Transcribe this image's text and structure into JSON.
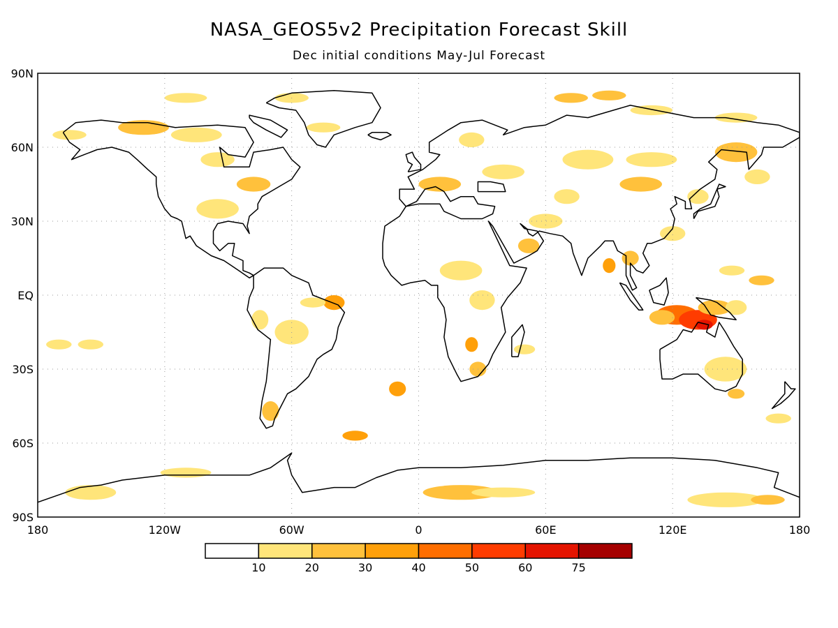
{
  "title": "NASA_GEOS5v2 Precipitation Forecast Skill",
  "subtitle": "Dec initial conditions   May-Jul Forecast",
  "map": {
    "lon_range": [
      -180,
      180
    ],
    "lat_range": [
      -90,
      90
    ],
    "grid": true,
    "lat_ticks": [
      {
        "value": 90,
        "label": "90N"
      },
      {
        "value": 60,
        "label": "60N"
      },
      {
        "value": 30,
        "label": "30N"
      },
      {
        "value": 0,
        "label": "EQ"
      },
      {
        "value": -30,
        "label": "30S"
      },
      {
        "value": -60,
        "label": "60S"
      },
      {
        "value": -90,
        "label": "90S"
      }
    ],
    "lon_ticks": [
      {
        "value": -180,
        "label": "180"
      },
      {
        "value": -120,
        "label": "120W"
      },
      {
        "value": -60,
        "label": "60W"
      },
      {
        "value": 0,
        "label": "0"
      },
      {
        "value": 60,
        "label": "60E"
      },
      {
        "value": 120,
        "label": "120E"
      },
      {
        "value": 180,
        "label": "180"
      }
    ]
  },
  "colorbar": {
    "colors": [
      "#ffffff",
      "#ffe57a",
      "#ffc13c",
      "#ffa00a",
      "#ff6e00",
      "#ff3c00",
      "#e41400",
      "#a50000"
    ],
    "labels": [
      "10",
      "20",
      "30",
      "40",
      "50",
      "60",
      "75"
    ]
  },
  "skill_regions": [
    {
      "lon": 122,
      "lat": -8,
      "rx": 10,
      "ry": 4,
      "level": 4
    },
    {
      "lon": 132,
      "lat": -10,
      "rx": 9,
      "ry": 4,
      "level": 5
    },
    {
      "lon": 135,
      "lat": -12,
      "rx": 4,
      "ry": 2,
      "level": 6
    },
    {
      "lon": 115,
      "lat": -9,
      "rx": 6,
      "ry": 3,
      "level": 2
    },
    {
      "lon": 140,
      "lat": -5,
      "rx": 8,
      "ry": 3,
      "level": 2
    },
    {
      "lon": 150,
      "lat": -5,
      "rx": 5,
      "ry": 3,
      "level": 1
    },
    {
      "lon": 148,
      "lat": 10,
      "rx": 6,
      "ry": 2,
      "level": 1
    },
    {
      "lon": 162,
      "lat": 6,
      "rx": 6,
      "ry": 2,
      "level": 2
    },
    {
      "lon": 90,
      "lat": 12,
      "rx": 3,
      "ry": 3,
      "level": 3
    },
    {
      "lon": 100,
      "lat": 15,
      "rx": 4,
      "ry": 3,
      "level": 2
    },
    {
      "lon": 105,
      "lat": 45,
      "rx": 10,
      "ry": 3,
      "level": 2
    },
    {
      "lon": 80,
      "lat": 55,
      "rx": 12,
      "ry": 4,
      "level": 1
    },
    {
      "lon": 110,
      "lat": 55,
      "rx": 12,
      "ry": 3,
      "level": 1
    },
    {
      "lon": 150,
      "lat": 58,
      "rx": 10,
      "ry": 4,
      "level": 2
    },
    {
      "lon": 160,
      "lat": 48,
      "rx": 6,
      "ry": 3,
      "level": 1
    },
    {
      "lon": 72,
      "lat": 80,
      "rx": 8,
      "ry": 2,
      "level": 2
    },
    {
      "lon": 90,
      "lat": 81,
      "rx": 8,
      "ry": 2,
      "level": 2
    },
    {
      "lon": 110,
      "lat": 75,
      "rx": 10,
      "ry": 2,
      "level": 1
    },
    {
      "lon": 150,
      "lat": 72,
      "rx": 10,
      "ry": 2,
      "level": 1
    },
    {
      "lon": 10,
      "lat": 45,
      "rx": 10,
      "ry": 3,
      "level": 2
    },
    {
      "lon": 40,
      "lat": 50,
      "rx": 10,
      "ry": 3,
      "level": 1
    },
    {
      "lon": 25,
      "lat": 63,
      "rx": 6,
      "ry": 3,
      "level": 1
    },
    {
      "lon": 60,
      "lat": 30,
      "rx": 8,
      "ry": 3,
      "level": 1
    },
    {
      "lon": 52,
      "lat": 20,
      "rx": 5,
      "ry": 3,
      "level": 2
    },
    {
      "lon": 20,
      "lat": 10,
      "rx": 10,
      "ry": 4,
      "level": 1
    },
    {
      "lon": 30,
      "lat": -2,
      "rx": 6,
      "ry": 4,
      "level": 1
    },
    {
      "lon": 25,
      "lat": -20,
      "rx": 3,
      "ry": 3,
      "level": 3
    },
    {
      "lon": 28,
      "lat": -30,
      "rx": 4,
      "ry": 3,
      "level": 2
    },
    {
      "lon": 50,
      "lat": -22,
      "rx": 5,
      "ry": 2,
      "level": 1
    },
    {
      "lon": -130,
      "lat": 68,
      "rx": 12,
      "ry": 3,
      "level": 2
    },
    {
      "lon": -105,
      "lat": 65,
      "rx": 12,
      "ry": 3,
      "level": 1
    },
    {
      "lon": -95,
      "lat": 55,
      "rx": 8,
      "ry": 3,
      "level": 1
    },
    {
      "lon": -78,
      "lat": 45,
      "rx": 8,
      "ry": 3,
      "level": 2
    },
    {
      "lon": -95,
      "lat": 35,
      "rx": 10,
      "ry": 4,
      "level": 1
    },
    {
      "lon": -165,
      "lat": 65,
      "rx": 8,
      "ry": 2,
      "level": 1
    },
    {
      "lon": -110,
      "lat": 80,
      "rx": 10,
      "ry": 2,
      "level": 1
    },
    {
      "lon": -60,
      "lat": 80,
      "rx": 8,
      "ry": 2,
      "level": 1
    },
    {
      "lon": -45,
      "lat": 68,
      "rx": 8,
      "ry": 2,
      "level": 1
    },
    {
      "lon": -40,
      "lat": -3,
      "rx": 5,
      "ry": 3,
      "level": 3
    },
    {
      "lon": -50,
      "lat": -3,
      "rx": 6,
      "ry": 2,
      "level": 1
    },
    {
      "lon": -60,
      "lat": -15,
      "rx": 8,
      "ry": 5,
      "level": 1
    },
    {
      "lon": -75,
      "lat": -10,
      "rx": 4,
      "ry": 4,
      "level": 1
    },
    {
      "lon": -70,
      "lat": -47,
      "rx": 4,
      "ry": 4,
      "level": 2
    },
    {
      "lon": -170,
      "lat": -20,
      "rx": 6,
      "ry": 2,
      "level": 1
    },
    {
      "lon": -155,
      "lat": -20,
      "rx": 6,
      "ry": 2,
      "level": 1
    },
    {
      "lon": -10,
      "lat": -38,
      "rx": 4,
      "ry": 3,
      "level": 3
    },
    {
      "lon": -30,
      "lat": -57,
      "rx": 6,
      "ry": 2,
      "level": 3
    },
    {
      "lon": 20,
      "lat": -80,
      "rx": 18,
      "ry": 3,
      "level": 2
    },
    {
      "lon": 40,
      "lat": -80,
      "rx": 15,
      "ry": 2,
      "level": 1
    },
    {
      "lon": 145,
      "lat": -83,
      "rx": 18,
      "ry": 3,
      "level": 1
    },
    {
      "lon": 165,
      "lat": -83,
      "rx": 8,
      "ry": 2,
      "level": 2
    },
    {
      "lon": -155,
      "lat": -80,
      "rx": 12,
      "ry": 3,
      "level": 1
    },
    {
      "lon": -110,
      "lat": -72,
      "rx": 12,
      "ry": 2,
      "level": 1
    },
    {
      "lon": 145,
      "lat": -30,
      "rx": 10,
      "ry": 5,
      "level": 1
    },
    {
      "lon": 150,
      "lat": -40,
      "rx": 4,
      "ry": 2,
      "level": 2
    },
    {
      "lon": 170,
      "lat": -50,
      "rx": 6,
      "ry": 2,
      "level": 1
    },
    {
      "lon": 120,
      "lat": 25,
      "rx": 6,
      "ry": 3,
      "level": 1
    },
    {
      "lon": 132,
      "lat": 40,
      "rx": 5,
      "ry": 3,
      "level": 1
    },
    {
      "lon": 70,
      "lat": 40,
      "rx": 6,
      "ry": 3,
      "level": 1
    }
  ]
}
